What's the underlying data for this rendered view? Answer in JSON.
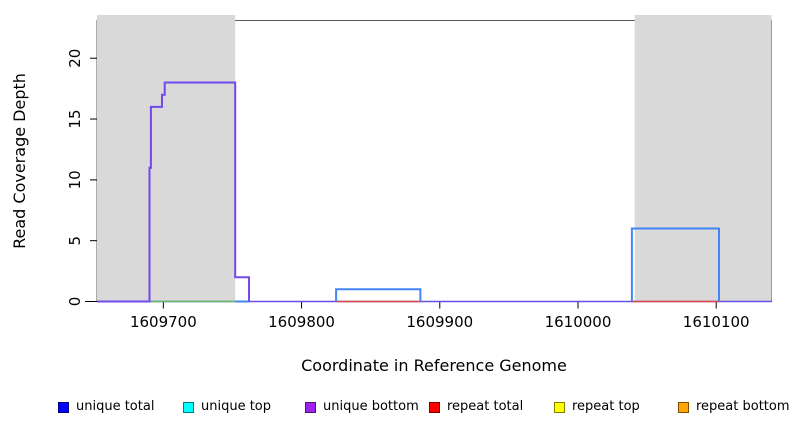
{
  "chart_data": {
    "type": "line",
    "subtype": "step-coverage-plot",
    "title": "",
    "xlabel": "Coordinate in Reference Genome",
    "ylabel": "Read Coverage Depth",
    "xlim": [
      1609652,
      1610140
    ],
    "ylim": [
      0,
      23.1
    ],
    "xticks": [
      1609700,
      1609800,
      1609900,
      1610000,
      1610100
    ],
    "yticks": [
      0,
      5,
      10,
      15,
      20
    ],
    "grid": false,
    "legend_position": "bottom",
    "shade_color": "#d9d9d9",
    "box_color": "#5a5a5a",
    "axis_color": "#000000",
    "shaded_regions": [
      {
        "name": "shaded-region-left",
        "x0": 1609652,
        "x1": 1609752
      },
      {
        "name": "shaded-region-right",
        "x0": 1610041,
        "x1": 1610140
      }
    ],
    "series": [
      {
        "name": "baseline-overlap",
        "color": "#6352e8",
        "width": 1.6,
        "segments": [
          [
            [
              1609652,
              0
            ],
            [
              1610140,
              0
            ]
          ]
        ]
      },
      {
        "name": "unique-top-at-zero",
        "color": "#66bb66",
        "width": 1.4,
        "segments": [
          [
            [
              1609690,
              0
            ],
            [
              1609752,
              0
            ]
          ]
        ]
      },
      {
        "name": "repeat-total-at-zero",
        "color": "#e04848",
        "width": 1.4,
        "segments": [
          [
            [
              1609825,
              0
            ],
            [
              1609886,
              0
            ]
          ],
          [
            [
              1610039,
              0
            ],
            [
              1610103,
              0
            ]
          ]
        ]
      },
      {
        "name": "unique-total",
        "color": "#4285f4",
        "width": 2,
        "segments": [
          [
            [
              1609752,
              0
            ],
            [
              1609762,
              0
            ]
          ],
          [
            [
              1609825,
              0
            ],
            [
              1609825,
              1
            ],
            [
              1609886,
              1
            ],
            [
              1609886,
              0
            ]
          ],
          [
            [
              1610039,
              0
            ],
            [
              1610039,
              6
            ],
            [
              1610102,
              6
            ],
            [
              1610102,
              0
            ]
          ]
        ]
      },
      {
        "name": "unique-bottom",
        "color": "#7448ec",
        "width": 2,
        "segments": [
          [
            [
              1609652,
              0
            ],
            [
              1609690,
              0
            ],
            [
              1609690,
              11
            ],
            [
              1609691,
              11
            ],
            [
              1609691,
              16
            ],
            [
              1609699,
              16
            ],
            [
              1609699,
              17
            ],
            [
              1609701,
              17
            ],
            [
              1609701,
              18
            ],
            [
              1609752,
              18
            ],
            [
              1609752,
              2
            ],
            [
              1609762,
              2
            ],
            [
              1609762,
              0
            ]
          ]
        ]
      }
    ],
    "legend": [
      {
        "label": "unique total",
        "color": "#0000ff"
      },
      {
        "label": "unique top",
        "color": "#00ffff"
      },
      {
        "label": "unique bottom",
        "color": "#a020f0"
      },
      {
        "label": "repeat total",
        "color": "#ff0000"
      },
      {
        "label": "repeat top",
        "color": "#ffff00"
      },
      {
        "label": "repeat bottom",
        "color": "#ffa500"
      }
    ]
  }
}
